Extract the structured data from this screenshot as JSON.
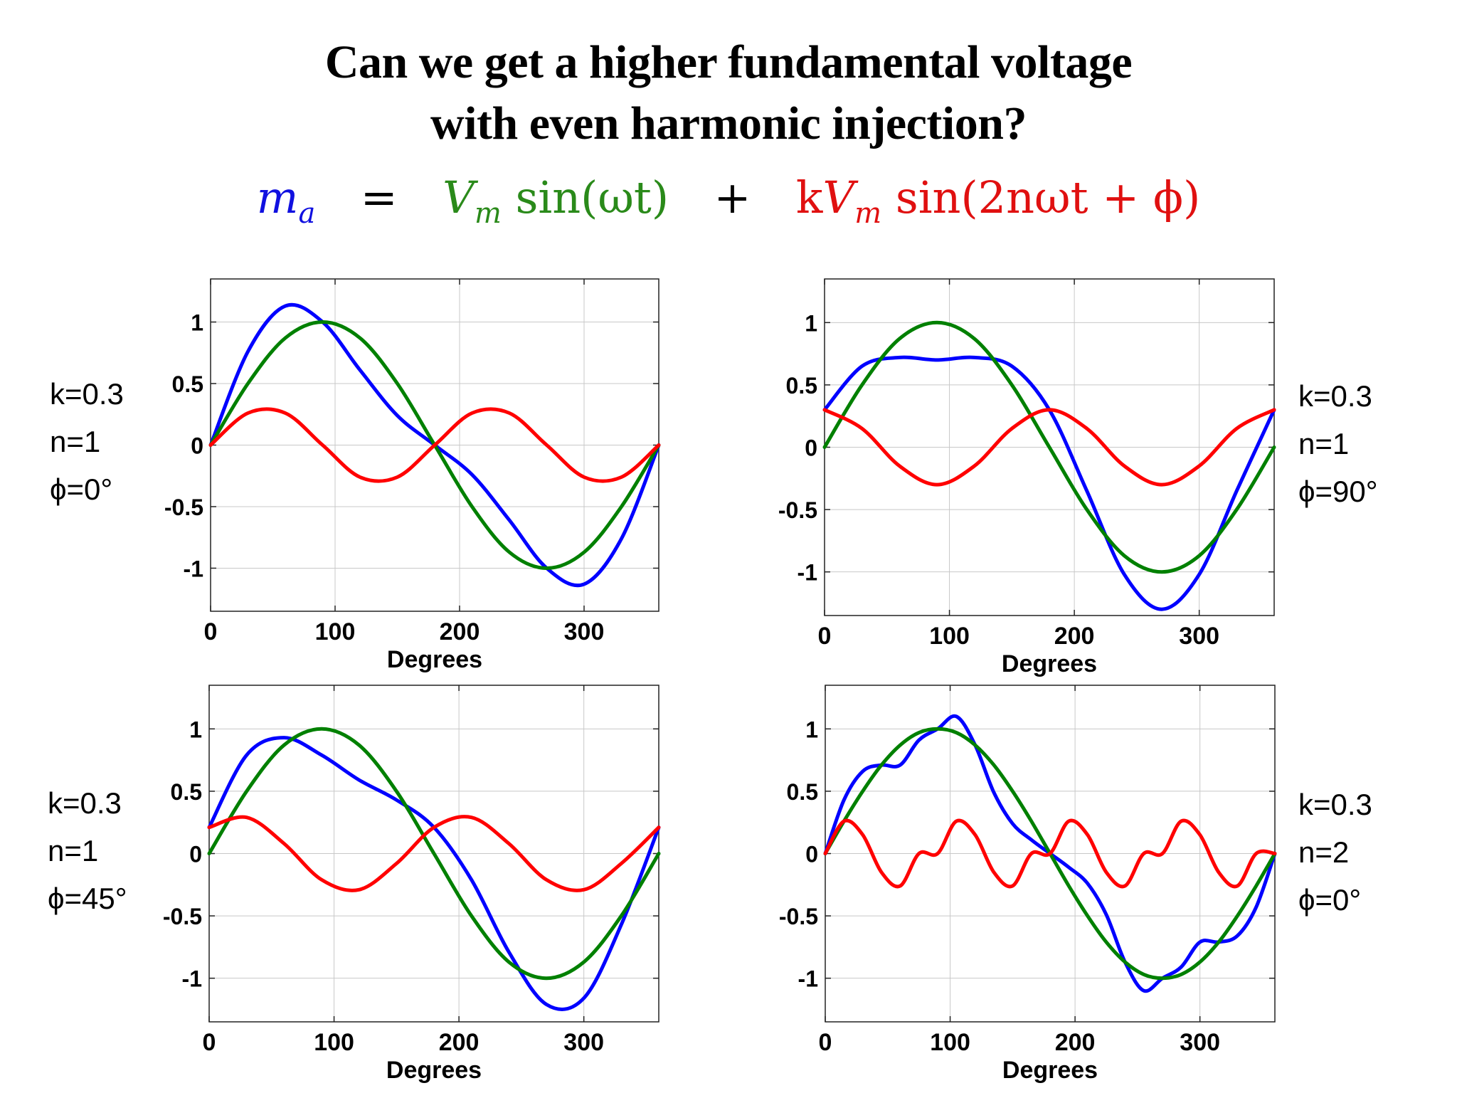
{
  "title": {
    "line1": "Can we get a higher fundamental voltage",
    "line2": "with even harmonic injection?"
  },
  "formula": {
    "lhs": "m",
    "lhs_sub": "a",
    "eq": "=",
    "term1_v": "V",
    "term1_sub": "m",
    "term1_fn": "sin(ωt)",
    "plus": "+",
    "term2_k": "k",
    "term2_v": "V",
    "term2_sub": "m",
    "term2_fn": "sin(2nωt + ϕ)",
    "colors": {
      "lhs": "#1010e0",
      "term1": "#2a8a1a",
      "term2": "#e01010",
      "operators": "#000000"
    }
  },
  "panels": [
    {
      "params": [
        "k=0.3",
        "n=1",
        "ϕ=0°"
      ],
      "params_side": "left"
    },
    {
      "params": [
        "k=0.3",
        "n=1",
        "ϕ=90°"
      ],
      "params_side": "right"
    },
    {
      "params": [
        "k=0.3",
        "n=1",
        "ϕ=45°"
      ],
      "params_side": "left"
    },
    {
      "params": [
        "k=0.3",
        "n=2",
        "ϕ=0°"
      ],
      "params_side": "right"
    }
  ],
  "chart_data": [
    {
      "type": "line",
      "xlabel": "Degrees",
      "ylabel": "",
      "xlim": [
        0,
        360
      ],
      "ylim": [
        -1.35,
        1.35
      ],
      "grid": true,
      "xticks": [
        0,
        100,
        200,
        300
      ],
      "yticks": [
        1,
        0.5,
        0,
        -0.5,
        -1
      ],
      "k": 0.3,
      "n": 1,
      "phi_deg": 0,
      "x": [
        0,
        30,
        60,
        90,
        120,
        150,
        180,
        210,
        240,
        270,
        300,
        330,
        360
      ],
      "series": [
        {
          "color": "#0000ff",
          "values": [
            0,
            0.76,
            1.13,
            1.0,
            0.61,
            0.24,
            0,
            -0.24,
            -0.61,
            -1.0,
            -1.13,
            -0.76,
            0
          ]
        },
        {
          "color": "#008000",
          "values": [
            0,
            0.5,
            0.87,
            1.0,
            0.87,
            0.5,
            0,
            -0.5,
            -0.87,
            -1.0,
            -0.87,
            -0.5,
            0
          ]
        },
        {
          "color": "#ff0000",
          "values": [
            0,
            0.26,
            0.26,
            0,
            -0.26,
            -0.26,
            0,
            0.26,
            0.26,
            0,
            -0.26,
            -0.26,
            0
          ]
        }
      ]
    },
    {
      "type": "line",
      "xlabel": "Degrees",
      "ylabel": "",
      "xlim": [
        0,
        360
      ],
      "ylim": [
        -1.35,
        1.35
      ],
      "grid": true,
      "xticks": [
        0,
        100,
        200,
        300
      ],
      "yticks": [
        1,
        0.5,
        0,
        -0.5,
        -1
      ],
      "k": 0.3,
      "n": 1,
      "phi_deg": 90,
      "x": [
        0,
        30,
        60,
        90,
        120,
        150,
        180,
        210,
        240,
        270,
        300,
        330,
        360
      ],
      "series": [
        {
          "color": "#0000ff",
          "values": [
            0.3,
            0.65,
            0.72,
            0.7,
            0.72,
            0.65,
            0.3,
            -0.35,
            -1.02,
            -1.3,
            -1.02,
            -0.35,
            0.3
          ]
        },
        {
          "color": "#008000",
          "values": [
            0,
            0.5,
            0.87,
            1.0,
            0.87,
            0.5,
            0,
            -0.5,
            -0.87,
            -1.0,
            -0.87,
            -0.5,
            0
          ]
        },
        {
          "color": "#ff0000",
          "values": [
            0.3,
            0.15,
            -0.15,
            -0.3,
            -0.15,
            0.15,
            0.3,
            0.15,
            -0.15,
            -0.3,
            -0.15,
            0.15,
            0.3
          ]
        }
      ]
    },
    {
      "type": "line",
      "xlabel": "Degrees",
      "ylabel": "",
      "xlim": [
        0,
        360
      ],
      "ylim": [
        -1.35,
        1.35
      ],
      "grid": true,
      "xticks": [
        0,
        100,
        200,
        300
      ],
      "yticks": [
        1,
        0.5,
        0,
        -0.5,
        -1
      ],
      "k": 0.3,
      "n": 1,
      "phi_deg": 45,
      "x": [
        0,
        30,
        60,
        90,
        120,
        150,
        180,
        210,
        240,
        270,
        300,
        330,
        360
      ],
      "series": [
        {
          "color": "#0000ff",
          "values": [
            0.21,
            0.79,
            0.93,
            0.79,
            0.59,
            0.43,
            0.21,
            -0.21,
            -0.79,
            -1.21,
            -1.16,
            -0.57,
            0.21
          ]
        },
        {
          "color": "#008000",
          "values": [
            0,
            0.5,
            0.87,
            1.0,
            0.87,
            0.5,
            0,
            -0.5,
            -0.87,
            -1.0,
            -0.87,
            -0.5,
            0
          ]
        },
        {
          "color": "#ff0000",
          "values": [
            0.21,
            0.29,
            0.08,
            -0.21,
            -0.29,
            -0.08,
            0.21,
            0.29,
            0.08,
            -0.21,
            -0.29,
            -0.08,
            0.21
          ]
        }
      ]
    },
    {
      "type": "line",
      "xlabel": "Degrees",
      "ylabel": "",
      "xlim": [
        0,
        360
      ],
      "ylim": [
        -1.35,
        1.35
      ],
      "grid": true,
      "xticks": [
        0,
        100,
        200,
        300
      ],
      "yticks": [
        1,
        0.5,
        0,
        -0.5,
        -1
      ],
      "k": 0.3,
      "n": 2,
      "phi_deg": 0,
      "x": [
        0,
        15,
        30,
        45,
        60,
        75,
        90,
        105,
        120,
        135,
        150,
        165,
        180,
        195,
        210,
        225,
        240,
        255,
        270,
        285,
        300,
        315,
        330,
        345,
        360
      ],
      "series": [
        {
          "color": "#0000ff",
          "values": [
            0,
            0.43,
            0.66,
            0.71,
            0.71,
            0.91,
            1.0,
            1.1,
            0.87,
            0.49,
            0.24,
            0.11,
            0,
            -0.11,
            -0.24,
            -0.49,
            -0.87,
            -1.1,
            -1.0,
            -0.91,
            -0.71,
            -0.71,
            -0.66,
            -0.43,
            0
          ]
        },
        {
          "color": "#008000",
          "values": [
            0,
            0.26,
            0.5,
            0.71,
            0.87,
            0.97,
            1.0,
            0.97,
            0.87,
            0.71,
            0.5,
            0.26,
            0,
            -0.26,
            -0.5,
            -0.71,
            -0.87,
            -0.97,
            -1.0,
            -0.97,
            -0.87,
            -0.71,
            -0.5,
            -0.26,
            0
          ]
        },
        {
          "color": "#ff0000",
          "values": [
            0,
            0.26,
            0.15,
            -0.15,
            -0.26,
            0,
            0,
            0.26,
            0.15,
            -0.15,
            -0.26,
            0,
            0,
            0.26,
            0.15,
            -0.15,
            -0.26,
            0,
            0,
            0.26,
            0.15,
            -0.15,
            -0.26,
            0,
            0
          ]
        }
      ]
    }
  ]
}
